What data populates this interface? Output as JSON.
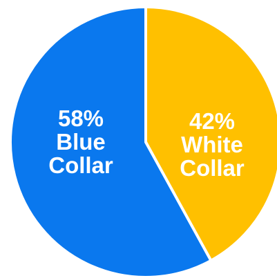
{
  "chart_data": {
    "type": "pie",
    "title": "",
    "slices": [
      {
        "value_label": "42%",
        "label_lines": [
          "White",
          "Collar"
        ],
        "value": 42,
        "color": "#FFC000"
      },
      {
        "value_label": "58%",
        "label_lines": [
          "Blue",
          "Collar"
        ],
        "value": 58,
        "color": "#0A78EE"
      }
    ]
  }
}
